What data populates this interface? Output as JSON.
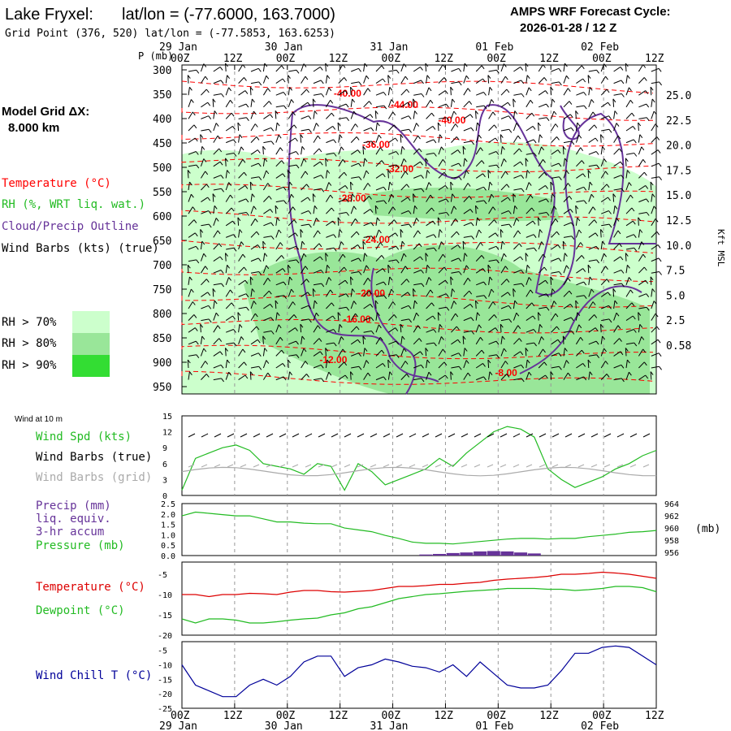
{
  "header": {
    "station": "Lake Fryxel:",
    "latlon_label": "lat/lon = (-77.6000, 163.7000)",
    "grid_point": "Grid Point (376, 520) lat/lon = (-77.5853, 163.6253)",
    "forecast_title": "AMPS WRF Forecast Cycle:",
    "forecast_cycle": "2026-01-28 / 12  Z"
  },
  "side": {
    "model_grid": "Model Grid ΔX:",
    "model_grid_value": "8.000 km",
    "temperature": "Temperature (°C)",
    "rh": "RH (%, WRT liq. wat.)",
    "cloud": "Cloud/Precip Outline",
    "wind": "Wind Barbs (kts) (true)",
    "rh70": "RH > 70%",
    "rh80": "RH > 80%",
    "rh90": "RH > 90%",
    "wind10": "Wind at 10 m",
    "wind_spd": "Wind Spd (kts)",
    "barbs_true": "Wind Barbs (true)",
    "barbs_grid": "Wind Barbs (grid)",
    "precip": "Precip (mm)",
    "liq": "liq. equiv.",
    "accum": "3-hr accum",
    "pressure": "Pressure (mb)",
    "temp2": "Temperature (°C)",
    "dewpoint": "Dewpoint (°C)",
    "windchill": "Wind Chill T (°C)",
    "p_unit": "P (mb)",
    "kft": "Kft MSL",
    "mb": "(mb)"
  },
  "colors": {
    "temp": "#ff0000",
    "rh70": "#ccffcc",
    "rh80": "#99e699",
    "rh90": "#33dd33",
    "cloud": "#663399",
    "wind": "#000000",
    "green": "#22bb22",
    "purple": "#663399",
    "blue": "#000099",
    "grey": "#aaaaaa"
  },
  "chart_data": [
    {
      "type": "heatmap",
      "title": "Time-height cross section",
      "time_ticks": [
        "00Z",
        "12Z",
        "00Z",
        "12Z",
        "00Z",
        "12Z",
        "00Z",
        "12Z",
        "00Z",
        "12Z"
      ],
      "date_labels": [
        "29 Jan",
        "30 Jan",
        "31 Jan",
        "01 Feb",
        "02 Feb"
      ],
      "pressure_levels": [
        300,
        350,
        400,
        450,
        500,
        550,
        600,
        650,
        700,
        750,
        800,
        850,
        900,
        950
      ],
      "height_kft_labels": [
        "25.0",
        "22.5",
        "20.0",
        "17.5",
        "15.0",
        "12.5",
        "10.0",
        "7.5",
        "5.0",
        "2.5",
        "0.58"
      ],
      "isotherm_labels": [
        {
          "label": "-40.00",
          "t": 0.32,
          "p": 355
        },
        {
          "label": "-44.00",
          "t": 0.44,
          "p": 378
        },
        {
          "label": "-40.00",
          "t": 0.54,
          "p": 410
        },
        {
          "label": "-36.00",
          "t": 0.38,
          "p": 460
        },
        {
          "label": "-32.00",
          "t": 0.43,
          "p": 510
        },
        {
          "label": "-28.00",
          "t": 0.33,
          "p": 570
        },
        {
          "label": "-24.00",
          "t": 0.38,
          "p": 655
        },
        {
          "label": "-20.00",
          "t": 0.37,
          "p": 765
        },
        {
          "label": "-16.00",
          "t": 0.34,
          "p": 818
        },
        {
          "label": "-12.00",
          "t": 0.29,
          "p": 902
        },
        {
          "label": "-8.00",
          "t": 0.66,
          "p": 928
        }
      ]
    },
    {
      "type": "line",
      "name": "wind10",
      "ylabel_ticks": [
        0,
        3,
        6,
        9,
        12,
        15
      ],
      "ylim": [
        0,
        15
      ],
      "series": [
        {
          "name": "Wind Spd (kts)",
          "values": [
            1,
            7,
            8,
            9,
            9.5,
            8.5,
            6,
            5.5,
            5,
            4,
            6,
            5.5,
            1,
            6,
            4.5,
            2,
            3,
            4,
            5,
            7,
            5.5,
            8,
            10,
            12,
            13,
            12.5,
            11,
            5,
            3,
            1.5,
            2.5,
            3.5,
            5,
            6,
            7.5,
            8.5
          ]
        }
      ]
    },
    {
      "type": "line",
      "name": "precip_pressure",
      "ylabel_ticks": [
        "0.0",
        "0.5",
        "1.0",
        "1.5",
        "2.0",
        "2.5"
      ],
      "pressure_ticks": [
        956,
        958,
        960,
        962,
        964
      ],
      "ylim": [
        0,
        2.5
      ],
      "pressure_ylim": [
        955.5,
        964
      ],
      "series": [
        {
          "name": "Pressure (mb)",
          "values": [
            962,
            962.6,
            962.4,
            962.2,
            962,
            962,
            961.5,
            961,
            961,
            960.8,
            960.7,
            960.7,
            960,
            959.7,
            959.4,
            958.8,
            958.3,
            957.7,
            957.5,
            957.5,
            957.4,
            957.6,
            957.8,
            958,
            958.2,
            958.3,
            958.3,
            958.2,
            958.3,
            958.3,
            958.6,
            958.8,
            959,
            959.3,
            959.4,
            959.6
          ]
        },
        {
          "name": "Precip (mm)",
          "values": [
            0,
            0,
            0,
            0,
            0,
            0,
            0,
            0,
            0,
            0,
            0,
            0,
            0,
            0,
            0,
            0,
            0,
            0,
            0.05,
            0.08,
            0.12,
            0.15,
            0.2,
            0.22,
            0.2,
            0.15,
            0.1,
            0,
            0,
            0,
            0,
            0,
            0,
            0,
            0,
            0
          ]
        }
      ]
    },
    {
      "type": "line",
      "name": "temp_dewpoint",
      "ylabel_ticks": [
        -20,
        -15,
        -10,
        -5
      ],
      "ylim": [
        -20,
        -2
      ],
      "series": [
        {
          "name": "Temperature (°C)",
          "values": [
            -10,
            -10,
            -10.5,
            -10,
            -10,
            -9.7,
            -9.8,
            -10,
            -9.4,
            -9,
            -9,
            -9.3,
            -9.4,
            -9.2,
            -9,
            -8.5,
            -8,
            -8,
            -7.8,
            -7.5,
            -7.5,
            -7.2,
            -7,
            -6.5,
            -6.2,
            -6,
            -5.8,
            -5.5,
            -5,
            -5,
            -4.8,
            -4.5,
            -4.7,
            -5,
            -5.5,
            -6
          ]
        },
        {
          "name": "Dewpoint (°C)",
          "values": [
            -16,
            -17,
            -16,
            -16,
            -16.3,
            -17,
            -17,
            -16.7,
            -16.3,
            -16,
            -15.8,
            -15,
            -14.5,
            -13.5,
            -13,
            -12,
            -11,
            -10.5,
            -10,
            -9.8,
            -9.5,
            -9.2,
            -9,
            -8.8,
            -8.5,
            -8.5,
            -8.5,
            -8.7,
            -8.7,
            -9,
            -8.8,
            -8.5,
            -8,
            -8,
            -8.3,
            -9.3
          ]
        }
      ]
    },
    {
      "type": "line",
      "name": "windchill",
      "ylabel_ticks": [
        -25,
        -20,
        -15,
        -10,
        -5
      ],
      "ylim": [
        -25,
        -2
      ],
      "series": [
        {
          "name": "Wind Chill T (°C)",
          "values": [
            -10,
            -17,
            -19,
            -21,
            -21,
            -17,
            -15,
            -17,
            -14,
            -9,
            -7,
            -7,
            -14,
            -11,
            -10,
            -8,
            -9,
            -10.5,
            -11,
            -12.5,
            -10,
            -14,
            -9,
            -13,
            -17,
            -18,
            -18,
            -17,
            -12,
            -6,
            -6,
            -4,
            -3.5,
            -4,
            -7,
            -10
          ]
        }
      ]
    }
  ]
}
